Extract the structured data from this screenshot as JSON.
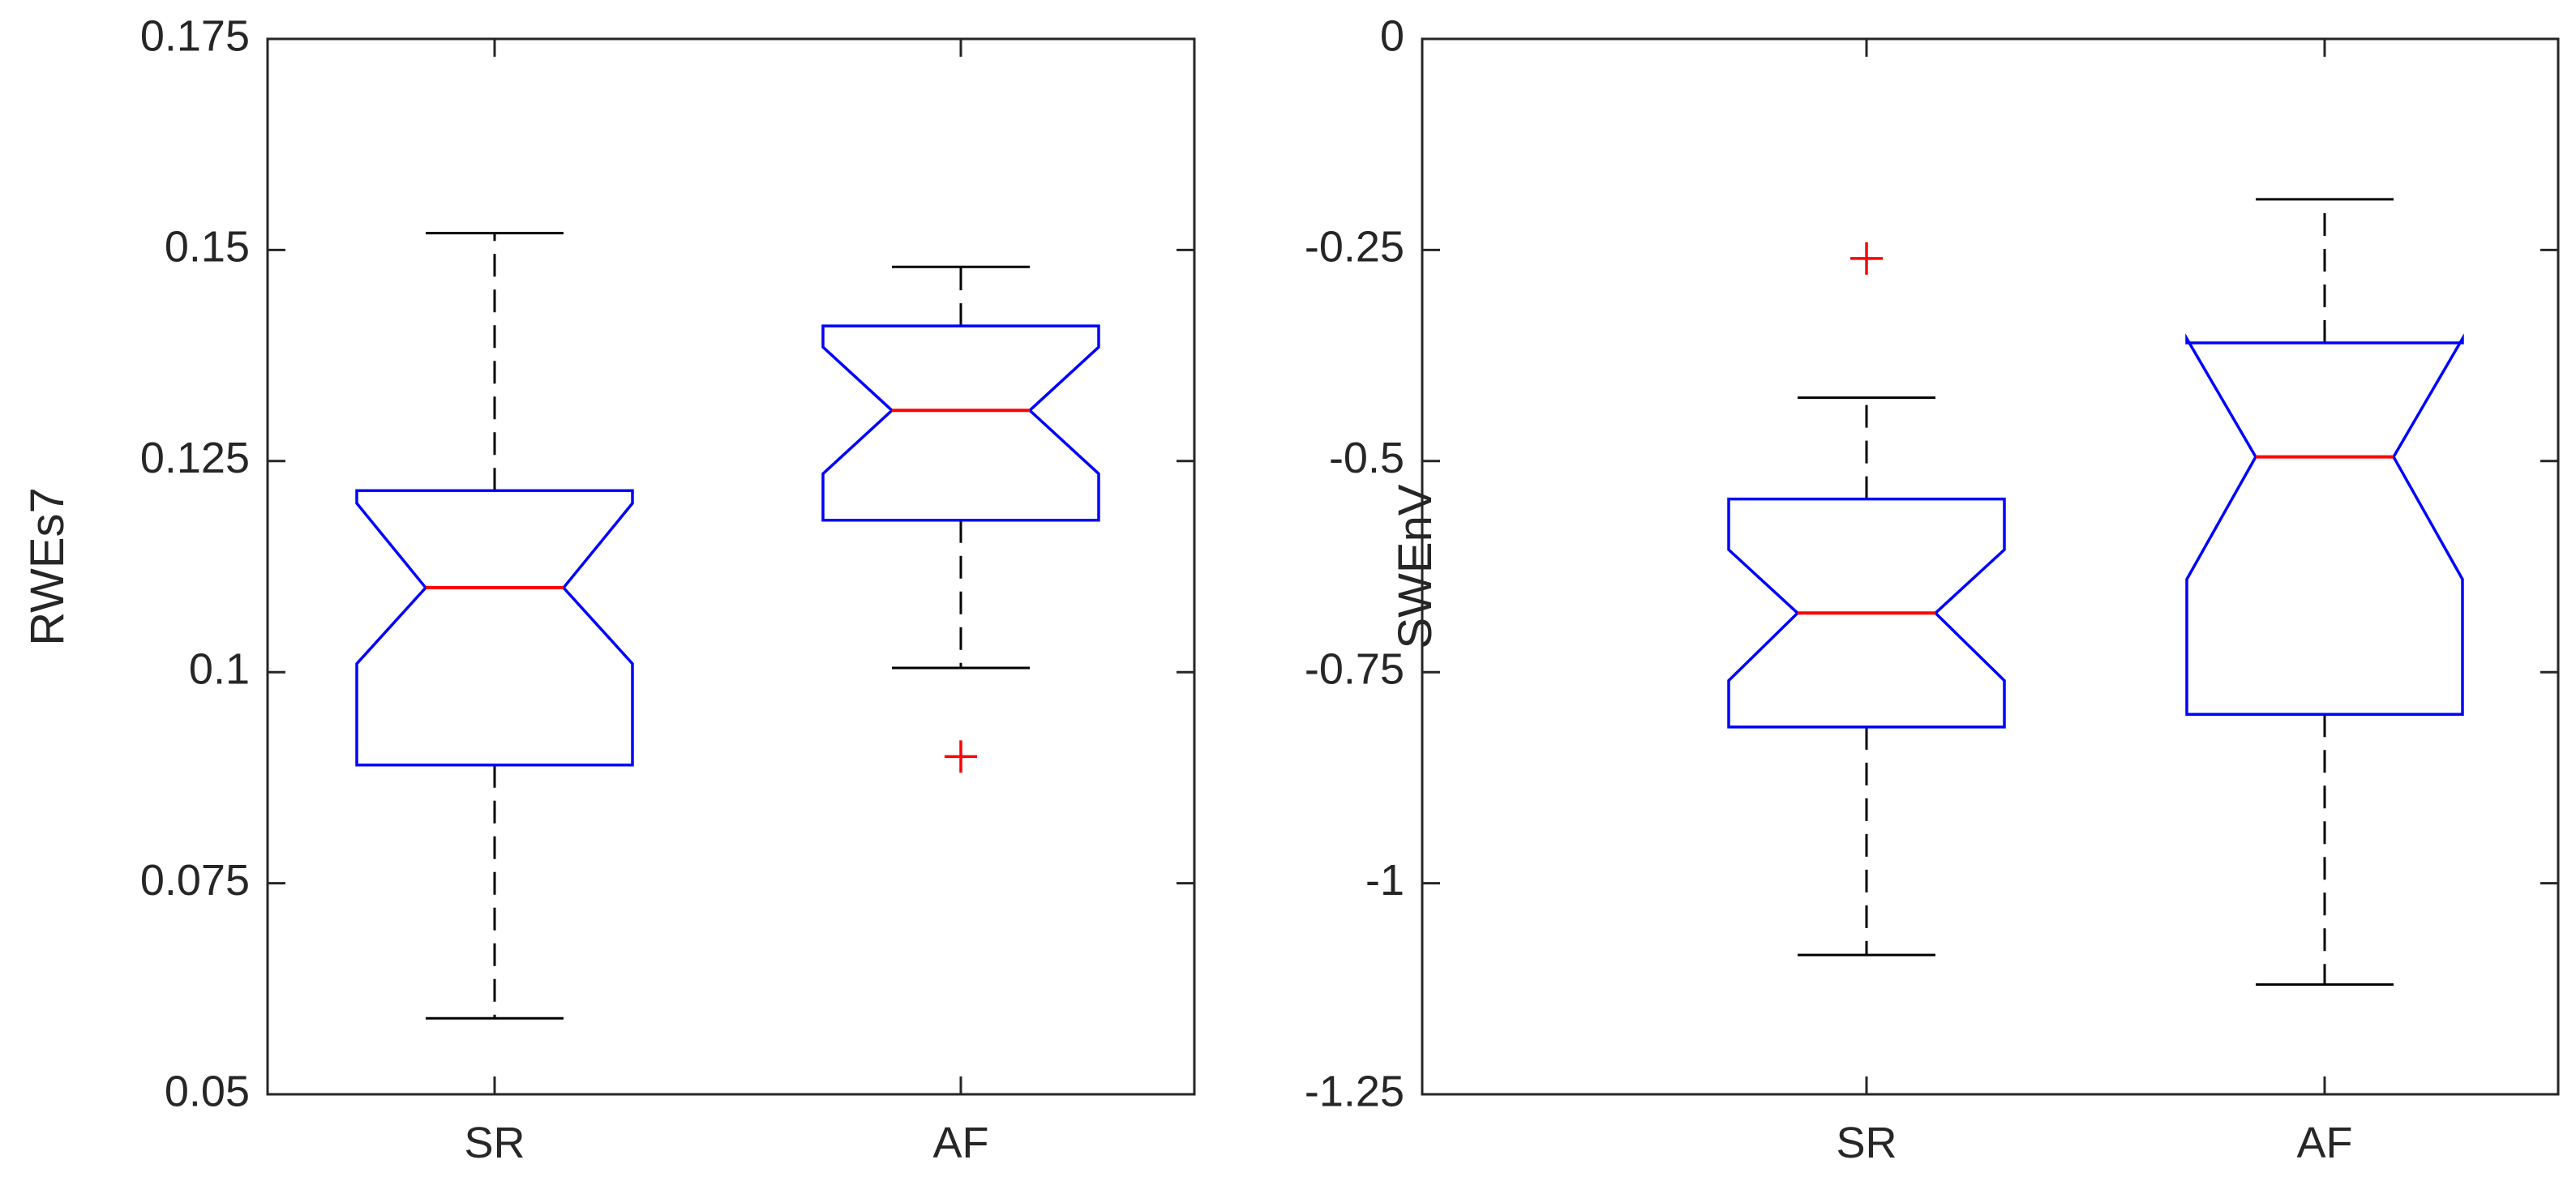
{
  "chart_data": [
    {
      "type": "boxplot",
      "notched": true,
      "ylabel": "RWEs7",
      "xlabel": "",
      "categories": [
        "SR",
        "AF"
      ],
      "ylim": [
        0.05,
        0.175
      ],
      "yticks": [
        0.05,
        0.075,
        0.1,
        0.125,
        0.15,
        0.175
      ],
      "ytick_labels": [
        "0.05",
        "0.075",
        "0.1",
        "0.125",
        "0.15",
        "0.175"
      ],
      "boxes": [
        {
          "category": "SR",
          "whisker_low": 0.059,
          "q1": 0.089,
          "notch_low": 0.101,
          "median": 0.11,
          "notch_high": 0.12,
          "q3": 0.1215,
          "whisker_high": 0.152,
          "outliers": []
        },
        {
          "category": "AF",
          "whisker_low": 0.1005,
          "q1": 0.118,
          "notch_low": 0.1235,
          "median": 0.131,
          "notch_high": 0.1385,
          "q3": 0.141,
          "whisker_high": 0.148,
          "outliers": [
            0.09
          ]
        }
      ],
      "colors": {
        "box": "#0000ff",
        "median": "#ff0000",
        "whisker": "#000000",
        "outlier": "#ff0000"
      }
    },
    {
      "type": "boxplot",
      "notched": true,
      "ylabel": "SWEnV",
      "xlabel": "",
      "categories": [
        "SR",
        "AF"
      ],
      "ylim": [
        -1.25,
        0
      ],
      "yticks": [
        -1.25,
        -1,
        -0.75,
        -0.5,
        -0.25,
        0
      ],
      "ytick_labels": [
        "-1.25",
        "-1",
        "-0.75",
        "-0.5",
        "-0.25",
        "0"
      ],
      "boxes": [
        {
          "category": "SR",
          "whisker_low": -1.085,
          "q1": -0.815,
          "notch_low": -0.76,
          "median": -0.68,
          "notch_high": -0.605,
          "q3": -0.545,
          "whisker_high": -0.425,
          "outliers": [
            -0.26
          ]
        },
        {
          "category": "AF",
          "whisker_low": -1.12,
          "q1": -0.8,
          "notch_low": -0.64,
          "median": -0.495,
          "notch_high": -0.355,
          "q3": -0.36,
          "whisker_high": -0.19,
          "outliers": []
        }
      ],
      "colors": {
        "box": "#0000ff",
        "median": "#ff0000",
        "whisker": "#000000",
        "outlier": "#ff0000"
      }
    }
  ]
}
